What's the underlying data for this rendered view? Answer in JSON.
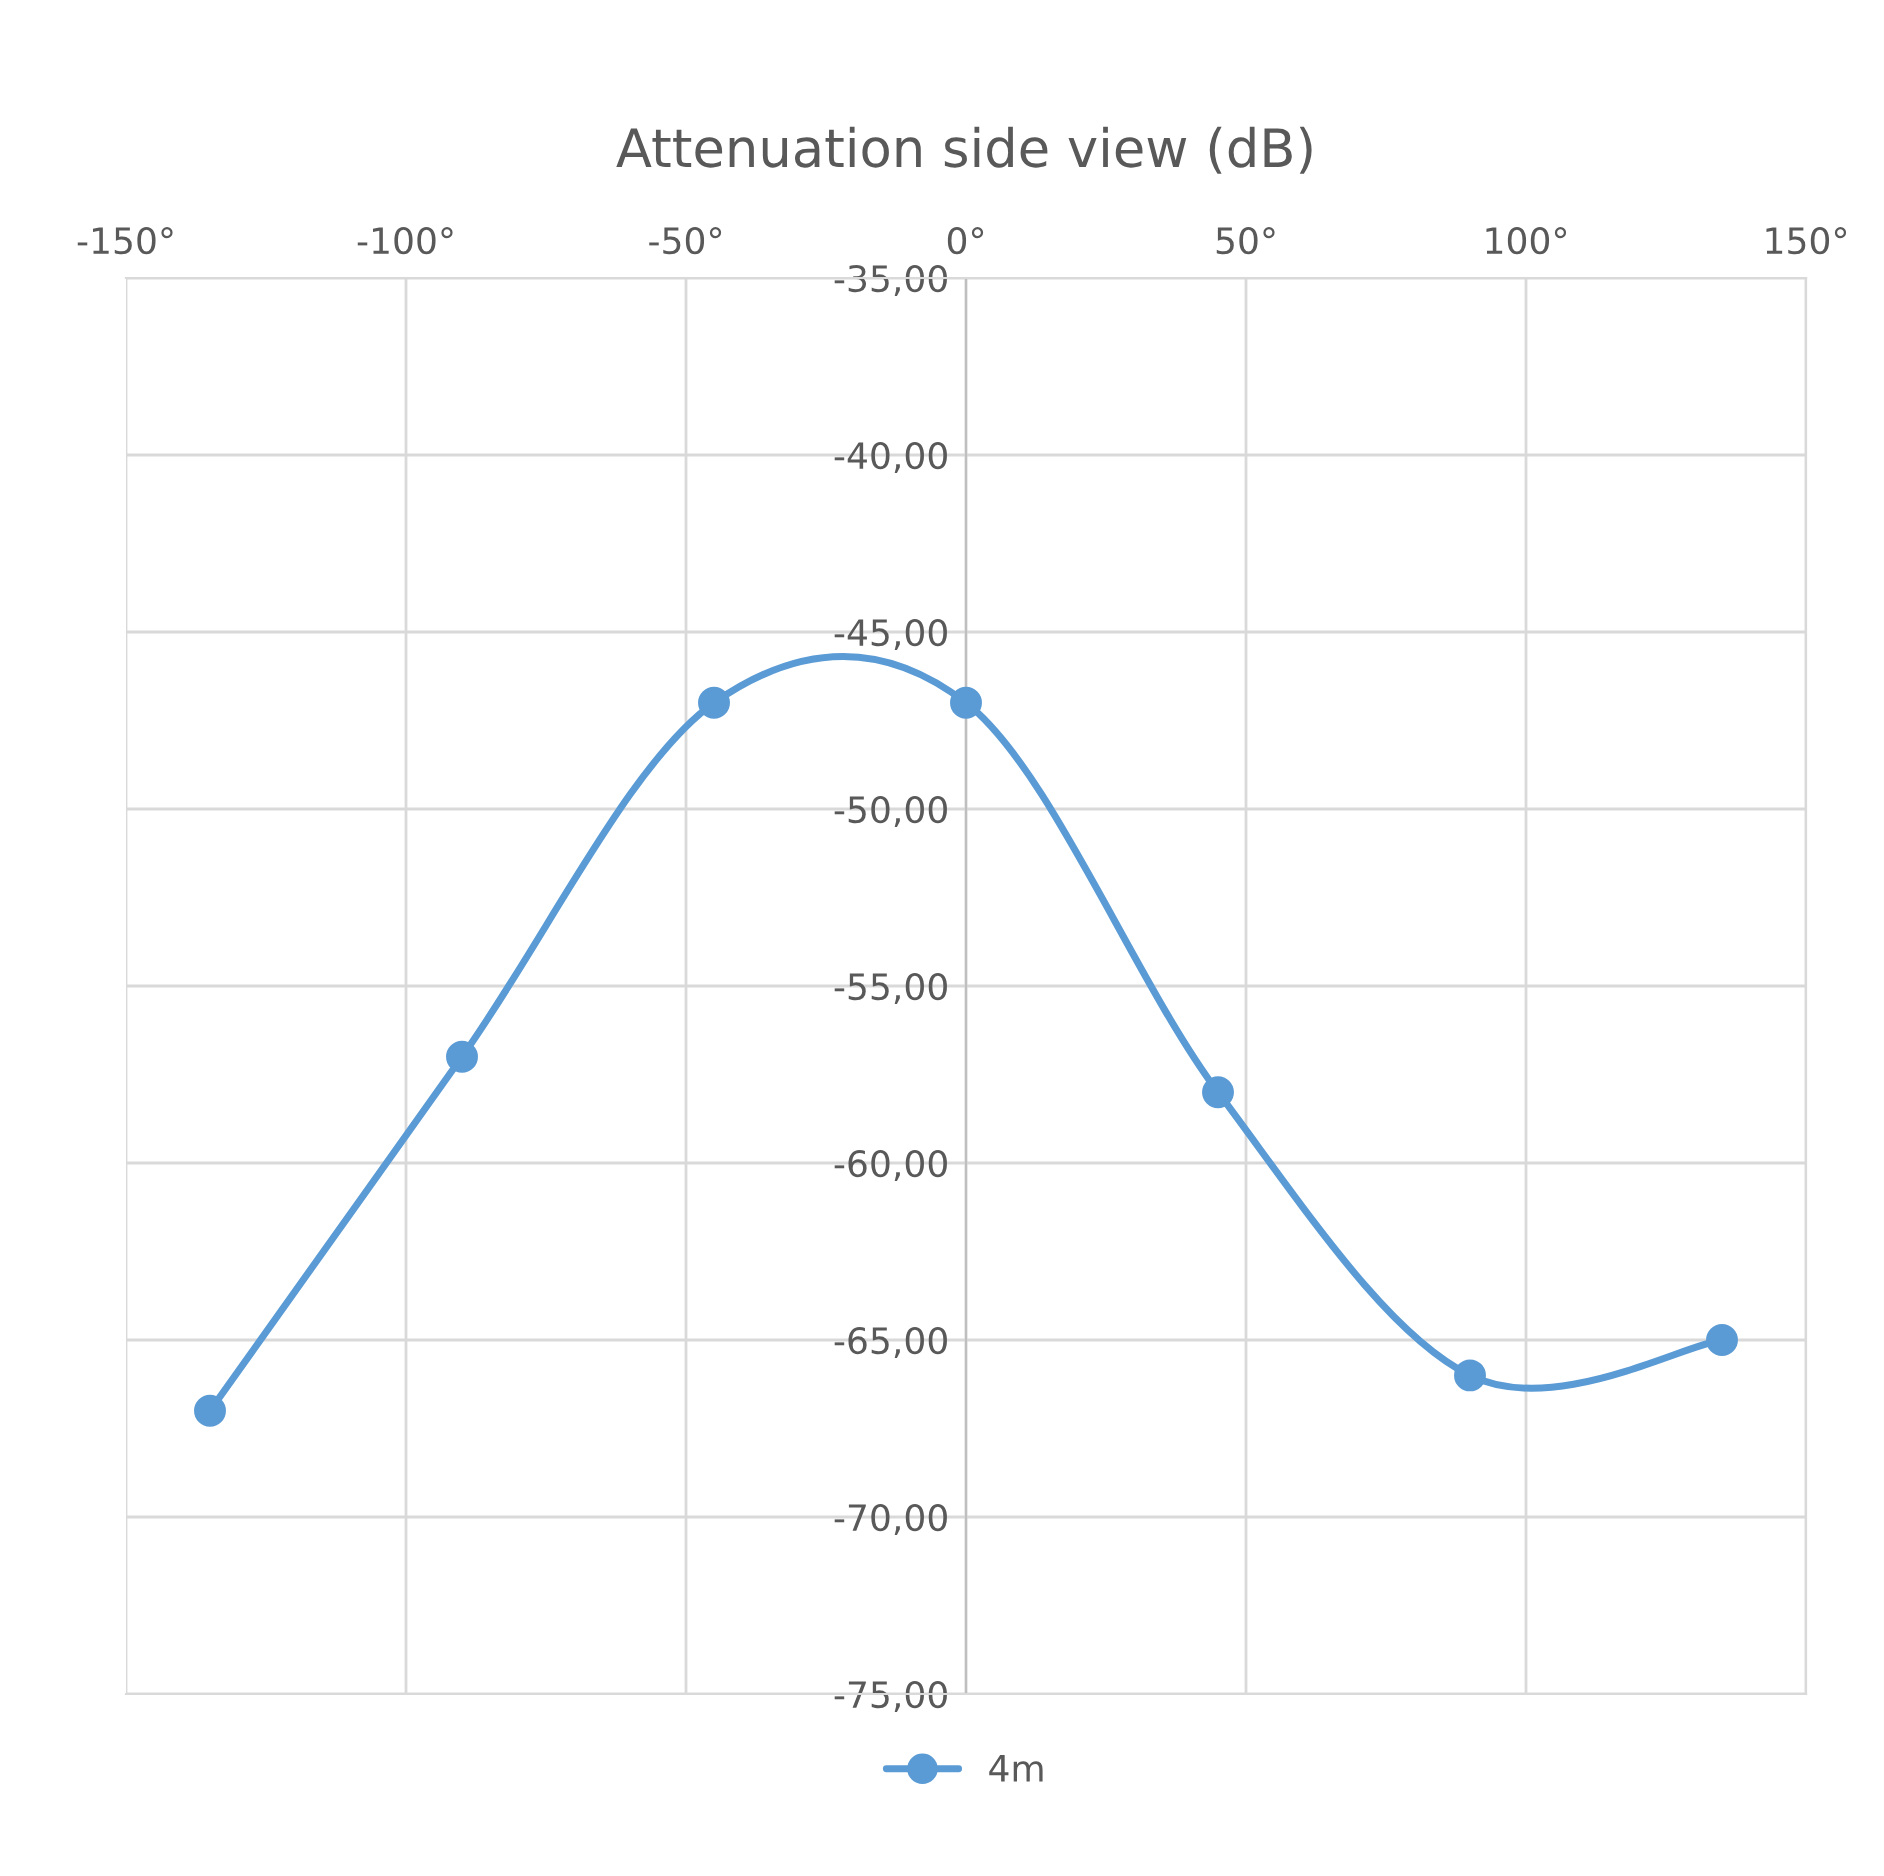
{
  "chart_data": {
    "type": "line",
    "title": "Attenuation side view (dB)",
    "x": [
      -135,
      -90,
      -45,
      0,
      45,
      90,
      135
    ],
    "series": [
      {
        "name": "4m",
        "color": "#5b9bd5",
        "values": [
          -67,
          -57,
          -47,
          -47,
          -58,
          -66,
          -65
        ]
      }
    ],
    "xlim": [
      -150,
      150
    ],
    "xticks": [
      {
        "value": -150,
        "label": "-150°"
      },
      {
        "value": -100,
        "label": "-100°"
      },
      {
        "value": -50,
        "label": "-50°"
      },
      {
        "value": 0,
        "label": "0°"
      },
      {
        "value": 50,
        "label": "50°"
      },
      {
        "value": 100,
        "label": "100°"
      },
      {
        "value": 150,
        "label": "150°"
      }
    ],
    "ylim": [
      -75,
      -35
    ],
    "yticks": [
      {
        "value": -75,
        "label": "-75,00"
      },
      {
        "value": -70,
        "label": "-70,00"
      },
      {
        "value": -65,
        "label": "-65,00"
      },
      {
        "value": -60,
        "label": "-60,00"
      },
      {
        "value": -55,
        "label": "-55,00"
      },
      {
        "value": -50,
        "label": "-50,00"
      },
      {
        "value": -45,
        "label": "-45,00"
      },
      {
        "value": -40,
        "label": "-40,00"
      },
      {
        "value": -35,
        "label": "-35,00"
      }
    ],
    "grid": true,
    "legend": "bottom",
    "marker": "circle",
    "line_style": "solid"
  }
}
